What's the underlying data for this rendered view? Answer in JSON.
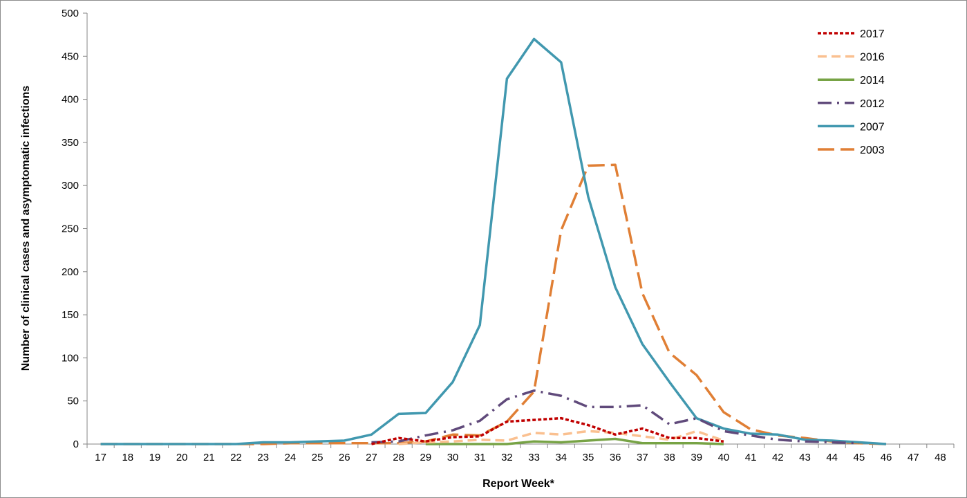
{
  "chart_data": {
    "type": "line",
    "title": "",
    "xlabel": "Report Week*",
    "ylabel": "Number of clinical cases and asymptomatic infections",
    "x": [
      17,
      18,
      19,
      20,
      21,
      22,
      23,
      24,
      25,
      26,
      27,
      28,
      29,
      30,
      31,
      32,
      33,
      34,
      35,
      36,
      37,
      38,
      39,
      40,
      41,
      42,
      43,
      44,
      45,
      46,
      47,
      48
    ],
    "ylim": [
      0,
      500
    ],
    "yticks": [
      0,
      50,
      100,
      150,
      200,
      250,
      300,
      350,
      400,
      450,
      500
    ],
    "grid": false,
    "legend_position": "top-right",
    "series": [
      {
        "name": "2017",
        "color": "#c00000",
        "dash": "dotted",
        "values": [
          null,
          null,
          null,
          null,
          null,
          null,
          null,
          null,
          null,
          null,
          0,
          7,
          3,
          8,
          9,
          26,
          28,
          30,
          22,
          11,
          18,
          7,
          7,
          3,
          null,
          null,
          null,
          null,
          null,
          null,
          null,
          null
        ]
      },
      {
        "name": "2016",
        "color": "#fac090",
        "dash": "dashed",
        "values": [
          null,
          null,
          null,
          null,
          null,
          null,
          null,
          null,
          null,
          null,
          null,
          0,
          2,
          3,
          5,
          4,
          13,
          11,
          15,
          13,
          9,
          5,
          15,
          4,
          null,
          null,
          null,
          null,
          null,
          null,
          null,
          null
        ]
      },
      {
        "name": "2014",
        "color": "#77a345",
        "dash": "solid",
        "values": [
          null,
          null,
          null,
          null,
          null,
          null,
          null,
          null,
          null,
          null,
          null,
          null,
          0,
          0,
          0,
          0,
          3,
          2,
          4,
          6,
          1,
          1,
          1,
          0,
          null,
          null,
          null,
          null,
          null,
          null,
          null,
          null
        ]
      },
      {
        "name": "2012",
        "color": "#604a7b",
        "dash": "dashdot",
        "values": [
          null,
          null,
          null,
          null,
          null,
          null,
          null,
          null,
          null,
          null,
          2,
          3,
          10,
          16,
          27,
          52,
          62,
          56,
          43,
          43,
          45,
          23,
          30,
          15,
          10,
          5,
          3,
          2,
          1,
          null,
          null,
          null
        ]
      },
      {
        "name": "2007",
        "color": "#4198af",
        "dash": "solid",
        "values": [
          0,
          0,
          0,
          0,
          0,
          0,
          2,
          2,
          3,
          4,
          11,
          35,
          36,
          72,
          138,
          424,
          470,
          443,
          287,
          182,
          116,
          72,
          30,
          18,
          12,
          11,
          5,
          4,
          2,
          0,
          null,
          null
        ]
      },
      {
        "name": "2003",
        "color": "#e07f35",
        "dash": "longdash",
        "values": [
          0,
          0,
          0,
          0,
          0,
          0,
          0,
          1,
          1,
          1,
          1,
          1,
          3,
          11,
          10,
          26,
          61,
          248,
          323,
          324,
          175,
          106,
          80,
          37,
          17,
          10,
          7,
          3,
          1,
          0,
          null,
          null
        ]
      }
    ]
  }
}
